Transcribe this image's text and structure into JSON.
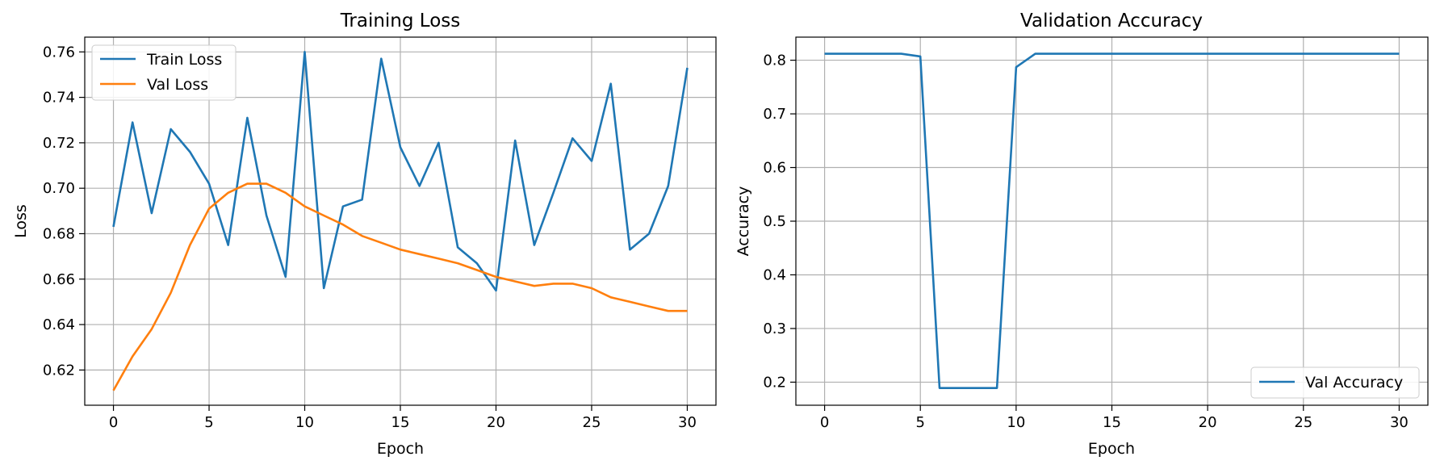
{
  "chart_data": [
    {
      "type": "line",
      "title": "Training Loss",
      "xlabel": "Epoch",
      "ylabel": "Loss",
      "xlim": [
        -1.5,
        31.5
      ],
      "ylim": [
        0.6045,
        0.7665
      ],
      "xticks": [
        0,
        5,
        10,
        15,
        20,
        25,
        30
      ],
      "yticks": [
        0.62,
        0.64,
        0.66,
        0.68,
        0.7,
        0.72,
        0.74,
        0.76
      ],
      "ytick_labels": [
        "0.62",
        "0.64",
        "0.66",
        "0.68",
        "0.70",
        "0.72",
        "0.74",
        "0.76"
      ],
      "grid": true,
      "legend_position": "top-left",
      "x": [
        0,
        1,
        2,
        3,
        4,
        5,
        6,
        7,
        8,
        9,
        10,
        11,
        12,
        13,
        14,
        15,
        16,
        17,
        18,
        19,
        20,
        21,
        22,
        23,
        24,
        25,
        26,
        27,
        28,
        29,
        30
      ],
      "series": [
        {
          "name": "Train Loss",
          "color": "#1f77b4",
          "values": [
            0.683,
            0.729,
            0.689,
            0.726,
            0.716,
            0.702,
            0.675,
            0.731,
            0.688,
            0.661,
            0.76,
            0.656,
            0.692,
            0.695,
            0.757,
            0.718,
            0.701,
            0.72,
            0.674,
            0.667,
            0.655,
            0.721,
            0.675,
            0.698,
            0.722,
            0.712,
            0.746,
            0.673,
            0.68,
            0.701,
            0.753
          ]
        },
        {
          "name": "Val Loss",
          "color": "#ff7f0e",
          "values": [
            0.611,
            0.626,
            0.638,
            0.654,
            0.675,
            0.691,
            0.698,
            0.702,
            0.702,
            0.698,
            0.692,
            0.688,
            0.684,
            0.679,
            0.676,
            0.673,
            0.671,
            0.669,
            0.667,
            0.664,
            0.661,
            0.659,
            0.657,
            0.658,
            0.658,
            0.656,
            0.652,
            0.65,
            0.648,
            0.646,
            0.646
          ]
        }
      ]
    },
    {
      "type": "line",
      "title": "Validation Accuracy",
      "xlabel": "Epoch",
      "ylabel": "Accuracy",
      "xlim": [
        -1.5,
        31.5
      ],
      "ylim": [
        0.157,
        0.843
      ],
      "xticks": [
        0,
        5,
        10,
        15,
        20,
        25,
        30
      ],
      "yticks": [
        0.2,
        0.3,
        0.4,
        0.5,
        0.6,
        0.7,
        0.8
      ],
      "ytick_labels": [
        "0.2",
        "0.3",
        "0.4",
        "0.5",
        "0.6",
        "0.7",
        "0.8"
      ],
      "grid": true,
      "legend_position": "bottom-right",
      "x": [
        0,
        1,
        2,
        3,
        4,
        5,
        6,
        7,
        8,
        9,
        10,
        11,
        12,
        13,
        14,
        15,
        16,
        17,
        18,
        19,
        20,
        21,
        22,
        23,
        24,
        25,
        26,
        27,
        28,
        29,
        30
      ],
      "series": [
        {
          "name": "Val Accuracy",
          "color": "#1f77b4",
          "values": [
            0.812,
            0.812,
            0.812,
            0.812,
            0.812,
            0.807,
            0.189,
            0.189,
            0.189,
            0.189,
            0.787,
            0.812,
            0.812,
            0.812,
            0.812,
            0.812,
            0.812,
            0.812,
            0.812,
            0.812,
            0.812,
            0.812,
            0.812,
            0.812,
            0.812,
            0.812,
            0.812,
            0.812,
            0.812,
            0.812,
            0.812
          ]
        }
      ]
    }
  ]
}
